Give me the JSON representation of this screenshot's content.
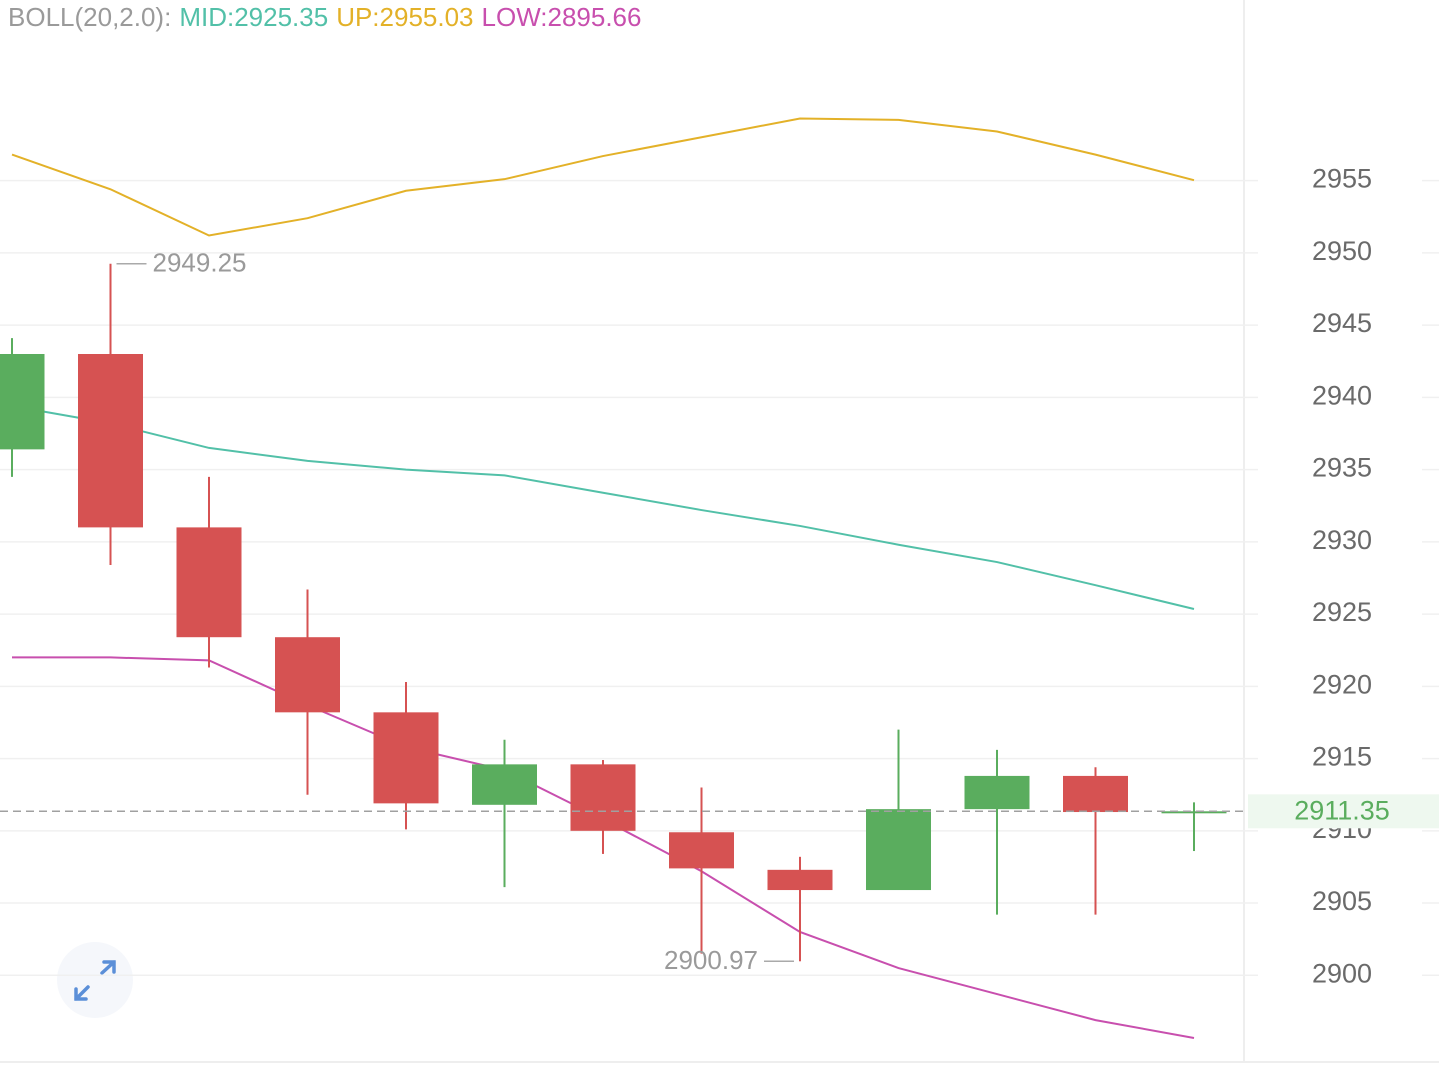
{
  "chart_data": {
    "type": "candlestick",
    "indicator": "BOLL(20,2.0):",
    "indicator_color": "#9a9a9a",
    "up_color": "#5aad5e",
    "down_color": "#d65252",
    "ylim": [
      2894,
      2967.5
    ],
    "yticks": [
      2900,
      2905,
      2910,
      2915,
      2920,
      2925,
      2930,
      2935,
      2940,
      2945,
      2950,
      2955
    ],
    "grid": true,
    "candles": [
      {
        "open": 2936.4,
        "high": 2944.1,
        "low": 2934.5,
        "close": 2943.0
      },
      {
        "open": 2943.0,
        "high": 2949.25,
        "low": 2928.4,
        "close": 2931.0
      },
      {
        "open": 2931.0,
        "high": 2934.5,
        "low": 2921.3,
        "close": 2923.4
      },
      {
        "open": 2923.4,
        "high": 2926.7,
        "low": 2912.5,
        "close": 2918.2
      },
      {
        "open": 2918.2,
        "high": 2920.3,
        "low": 2910.1,
        "close": 2911.9
      },
      {
        "open": 2911.8,
        "high": 2916.3,
        "low": 2906.1,
        "close": 2914.6
      },
      {
        "open": 2914.6,
        "high": 2914.9,
        "low": 2908.4,
        "close": 2910.0
      },
      {
        "open": 2909.9,
        "high": 2913.0,
        "low": 2901.5,
        "close": 2907.4
      },
      {
        "open": 2907.3,
        "high": 2908.2,
        "low": 2900.97,
        "close": 2905.9
      },
      {
        "open": 2905.9,
        "high": 2917.0,
        "low": 2905.9,
        "close": 2911.5
      },
      {
        "open": 2911.5,
        "high": 2915.6,
        "low": 2904.2,
        "close": 2913.8
      },
      {
        "open": 2913.8,
        "high": 2914.4,
        "low": 2904.2,
        "close": 2911.3
      },
      {
        "open": 2911.3,
        "high": 2911.97,
        "low": 2908.6,
        "close": 2911.35
      }
    ],
    "series": [
      {
        "name": "MID",
        "legend": "MID:2925.35",
        "color": "#52c0a8",
        "values": [
          2939.4,
          2938.2,
          2936.5,
          2935.6,
          2935.0,
          2934.6,
          2933.4,
          2932.2,
          2931.1,
          2929.8,
          2928.6,
          2927.0,
          2925.35
        ]
      },
      {
        "name": "UP",
        "legend": "UP:2955.03",
        "color": "#e3b128",
        "values": [
          2956.8,
          2954.4,
          2951.2,
          2952.4,
          2954.3,
          2955.1,
          2956.7,
          2958.0,
          2959.3,
          2959.2,
          2958.4,
          2956.8,
          2955.03
        ]
      },
      {
        "name": "LOW",
        "legend": "LOW:2895.66",
        "color": "#c84fae",
        "values": [
          2922.0,
          2922.0,
          2921.8,
          2918.7,
          2915.8,
          2914.2,
          2910.8,
          2907.2,
          2903.0,
          2900.5,
          2898.7,
          2896.9,
          2895.66
        ]
      }
    ]
  }
}
